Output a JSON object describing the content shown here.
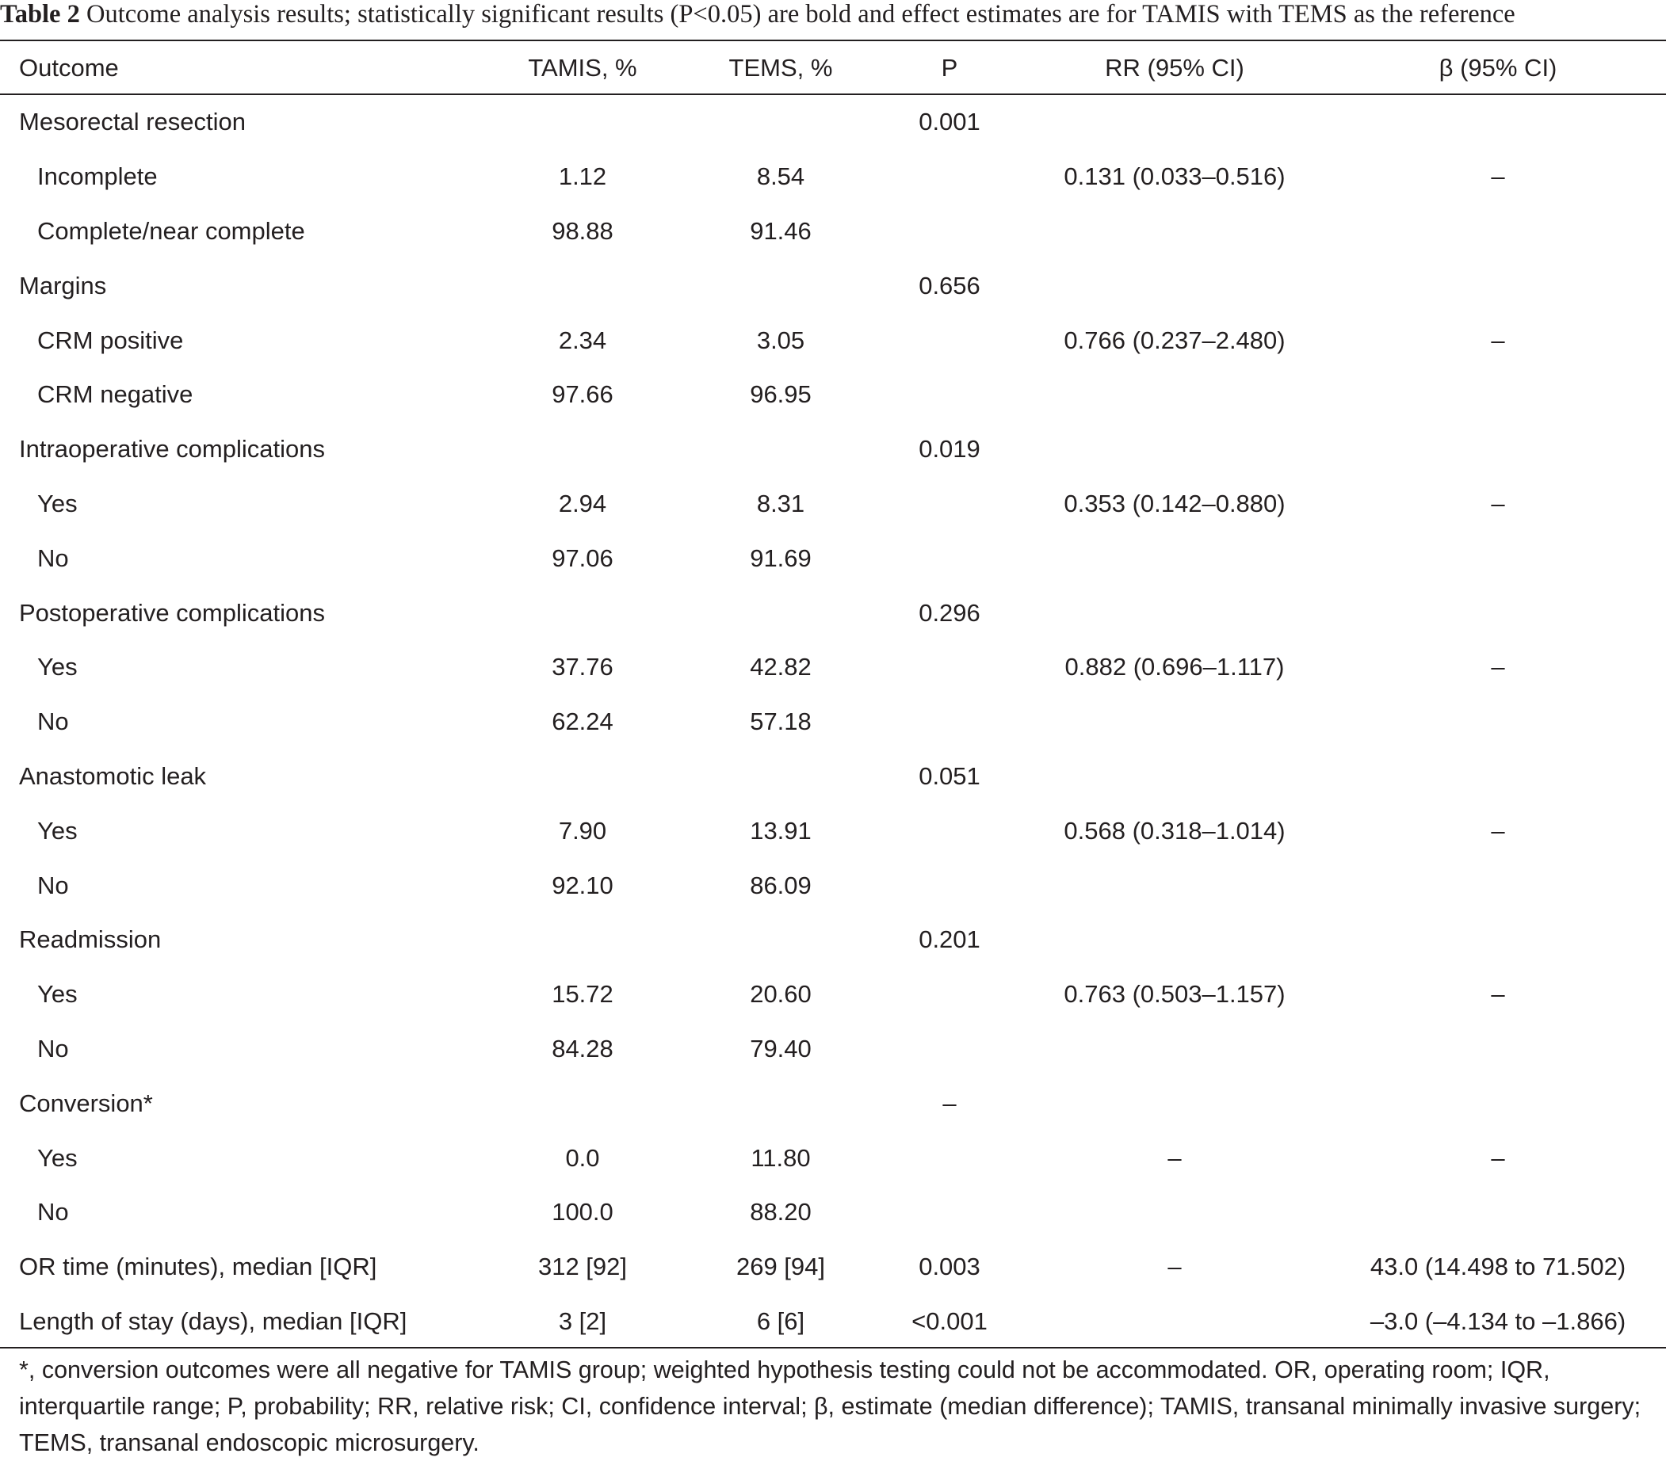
{
  "caption": {
    "label": "Table 2",
    "text": " Outcome analysis results; statistically significant results (P<0.05) are bold and effect estimates are for TAMIS with TEMS as the reference"
  },
  "columns": [
    "Outcome",
    "TAMIS, %",
    "TEMS, %",
    "P",
    "RR (95% CI)",
    "β (95% CI)"
  ],
  "rows": [
    {
      "outcome": "Mesorectal resection",
      "tamis": "",
      "tems": "",
      "p": "0.001",
      "rr": "",
      "beta": "",
      "sub": false
    },
    {
      "outcome": "Incomplete",
      "tamis": "1.12",
      "tems": "8.54",
      "p": "",
      "rr": "0.131 (0.033–0.516)",
      "beta": "–",
      "sub": true
    },
    {
      "outcome": "Complete/near complete",
      "tamis": "98.88",
      "tems": "91.46",
      "p": "",
      "rr": "",
      "beta": "",
      "sub": true
    },
    {
      "outcome": "Margins",
      "tamis": "",
      "tems": "",
      "p": "0.656",
      "rr": "",
      "beta": "",
      "sub": false
    },
    {
      "outcome": "CRM positive",
      "tamis": "2.34",
      "tems": "3.05",
      "p": "",
      "rr": "0.766 (0.237–2.480)",
      "beta": "–",
      "sub": true
    },
    {
      "outcome": "CRM negative",
      "tamis": "97.66",
      "tems": "96.95",
      "p": "",
      "rr": "",
      "beta": "",
      "sub": true
    },
    {
      "outcome": "Intraoperative complications",
      "tamis": "",
      "tems": "",
      "p": "0.019",
      "rr": "",
      "beta": "",
      "sub": false
    },
    {
      "outcome": "Yes",
      "tamis": "2.94",
      "tems": "8.31",
      "p": "",
      "rr": "0.353 (0.142–0.880)",
      "beta": "–",
      "sub": true
    },
    {
      "outcome": "No",
      "tamis": "97.06",
      "tems": "91.69",
      "p": "",
      "rr": "",
      "beta": "",
      "sub": true
    },
    {
      "outcome": "Postoperative complications",
      "tamis": "",
      "tems": "",
      "p": "0.296",
      "rr": "",
      "beta": "",
      "sub": false
    },
    {
      "outcome": "Yes",
      "tamis": "37.76",
      "tems": "42.82",
      "p": "",
      "rr": "0.882 (0.696–1.117)",
      "beta": "–",
      "sub": true
    },
    {
      "outcome": "No",
      "tamis": "62.24",
      "tems": "57.18",
      "p": "",
      "rr": "",
      "beta": "",
      "sub": true
    },
    {
      "outcome": "Anastomotic leak",
      "tamis": "",
      "tems": "",
      "p": "0.051",
      "rr": "",
      "beta": "",
      "sub": false
    },
    {
      "outcome": "Yes",
      "tamis": "7.90",
      "tems": "13.91",
      "p": "",
      "rr": "0.568 (0.318–1.014)",
      "beta": "–",
      "sub": true
    },
    {
      "outcome": "No",
      "tamis": "92.10",
      "tems": "86.09",
      "p": "",
      "rr": "",
      "beta": "",
      "sub": true
    },
    {
      "outcome": "Readmission",
      "tamis": "",
      "tems": "",
      "p": "0.201",
      "rr": "",
      "beta": "",
      "sub": false
    },
    {
      "outcome": "Yes",
      "tamis": "15.72",
      "tems": "20.60",
      "p": "",
      "rr": "0.763 (0.503–1.157)",
      "beta": "–",
      "sub": true
    },
    {
      "outcome": "No",
      "tamis": "84.28",
      "tems": "79.40",
      "p": "",
      "rr": "",
      "beta": "",
      "sub": true
    },
    {
      "outcome": "Conversion*",
      "tamis": "",
      "tems": "",
      "p": "–",
      "rr": "",
      "beta": "",
      "sub": false
    },
    {
      "outcome": "Yes",
      "tamis": "0.0",
      "tems": "11.80",
      "p": "",
      "rr": "–",
      "beta": "–",
      "sub": true
    },
    {
      "outcome": "No",
      "tamis": "100.0",
      "tems": "88.20",
      "p": "",
      "rr": "",
      "beta": "",
      "sub": true
    },
    {
      "outcome": "OR time (minutes), median [IQR]",
      "tamis": "312 [92]",
      "tems": "269 [94]",
      "p": "0.003",
      "rr": "–",
      "beta": "43.0 (14.498 to 71.502)",
      "sub": false
    },
    {
      "outcome": "Length of stay (days), median [IQR]",
      "tamis": "3 [2]",
      "tems": "6 [6]",
      "p": "<0.001",
      "rr": "",
      "beta": "–3.0 (–4.134 to –1.866)",
      "sub": false
    }
  ],
  "footnote": "*, conversion outcomes were all negative for TAMIS group; weighted hypothesis testing could not be accommodated. OR, operating room; IQR, interquartile range; P, probability; RR, relative risk; CI, confidence interval; β, estimate (median difference); TAMIS, transanal minimally invasive surgery; TEMS, transanal endoscopic microsurgery."
}
